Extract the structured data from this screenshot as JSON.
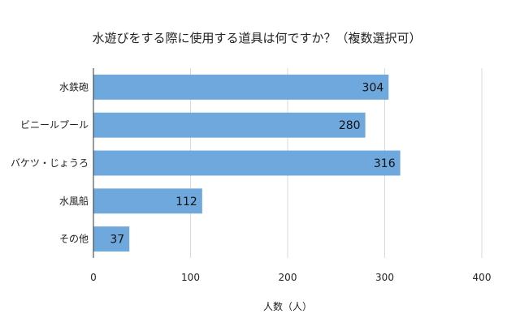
{
  "chart_data": {
    "type": "bar",
    "orientation": "horizontal",
    "title": "水遊びをする際に使用する道具は何ですか？（複数選択可）",
    "xlabel": "人数（人）",
    "ylabel": "",
    "categories": [
      "水鉄砲",
      "ビニールプール",
      "バケツ・じょうろ",
      "水風船",
      "その他"
    ],
    "values": [
      304,
      280,
      316,
      112,
      37
    ],
    "xlim": [
      0,
      400
    ],
    "xticks": [
      "0",
      "100",
      "200",
      "300",
      "400"
    ],
    "bar_color": "#6fa8dc",
    "grid": true,
    "data_labels": true
  }
}
